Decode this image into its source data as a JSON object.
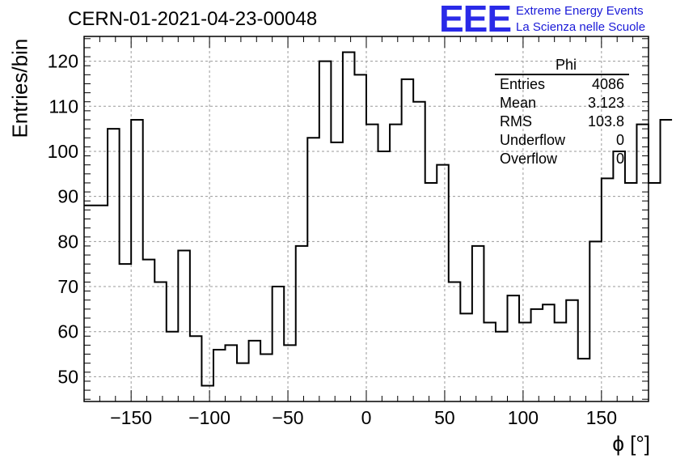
{
  "header": {
    "title": "CERN-01-2021-04-23-00048",
    "logo": "EEE",
    "logo_line1": "Extreme Energy Events",
    "logo_line2": "La Scienza nelle Scuole"
  },
  "stats": {
    "name": "Phi",
    "rows": [
      {
        "label": "Entries",
        "value": "4086"
      },
      {
        "label": "Mean",
        "value": "3.123"
      },
      {
        "label": "RMS",
        "value": "103.8"
      },
      {
        "label": "Underflow",
        "value": "0"
      },
      {
        "label": "Overflow",
        "value": "0"
      }
    ]
  },
  "chart_data": {
    "type": "histogram",
    "title": "CERN-01-2021-04-23-00048",
    "xlabel": "ϕ [°]",
    "ylabel": "Entries/bin",
    "xlim": [
      -180,
      180
    ],
    "ylim": [
      44.5,
      125.5
    ],
    "bin_width": 7.5,
    "values": [
      88,
      88,
      105,
      75,
      107,
      76,
      71,
      60,
      78,
      59,
      48,
      56,
      57,
      53,
      58,
      55,
      70,
      57,
      79,
      103,
      120,
      102,
      122,
      117,
      106,
      100,
      106,
      116,
      111,
      93,
      97,
      71,
      64,
      79,
      62,
      60,
      68,
      62,
      65,
      66,
      62,
      67,
      54,
      80,
      94,
      100,
      93,
      106,
      93,
      107
    ],
    "xticks": [
      -150,
      -100,
      -50,
      0,
      50,
      100,
      150
    ],
    "xtick_labels": [
      "−150",
      "−100",
      "−50",
      "0",
      "50",
      "100",
      "150"
    ],
    "yticks": [
      50,
      60,
      70,
      80,
      90,
      100,
      110,
      120
    ],
    "yticks_labels": [
      "50",
      "60",
      "70",
      "80",
      "90",
      "100",
      "110",
      "120"
    ],
    "grid": true,
    "colors": {
      "line": "#000000",
      "grid": "#9a9a9a",
      "logo": "#2a2ae8"
    }
  }
}
